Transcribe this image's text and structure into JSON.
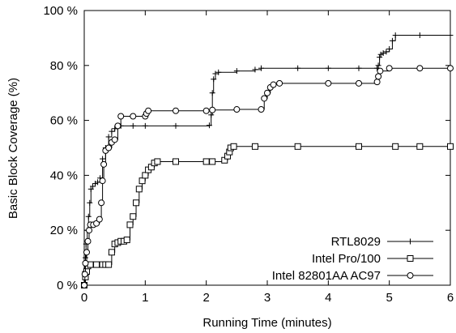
{
  "chart_data": {
    "type": "line",
    "xlabel": "Running Time (minutes)",
    "ylabel": "Basic Block Coverage (%)",
    "xlim": [
      0,
      6
    ],
    "ylim": [
      0,
      100
    ],
    "x_ticks": [
      "0",
      "1",
      "2",
      "3",
      "4",
      "5",
      "6"
    ],
    "x_tick_values": [
      0,
      1,
      2,
      3,
      4,
      5,
      6
    ],
    "y_ticks": [
      "0 %",
      "20 %",
      "40 %",
      "60 %",
      "80 %",
      "100 %"
    ],
    "y_tick_values": [
      0,
      20,
      40,
      60,
      80,
      100
    ],
    "grid": false,
    "legend_position": "bottom-right",
    "series": [
      {
        "name": "RTL8029",
        "marker": "plus",
        "x": [
          0,
          0.01,
          0.02,
          0.03,
          0.05,
          0.07,
          0.09,
          0.11,
          0.14,
          0.18,
          0.22,
          0.26,
          0.3,
          0.35,
          0.4,
          0.45,
          0.5,
          0.55,
          0.6,
          0.8,
          1.0,
          1.5,
          2.05,
          2.08,
          2.1,
          2.12,
          2.15,
          2.2,
          2.5,
          2.8,
          2.9,
          3.5,
          4.0,
          4.5,
          4.8,
          4.82,
          4.84,
          4.86,
          4.9,
          4.95,
          5.0,
          5.05,
          5.1,
          5.5,
          6.0
        ],
        "y": [
          0,
          5,
          10,
          15,
          20,
          25,
          30,
          35,
          36,
          37,
          37.5,
          39,
          46,
          50,
          54,
          56,
          57,
          57.5,
          58,
          58,
          58,
          58,
          58.2,
          62,
          70,
          75,
          77,
          77.5,
          78,
          78.5,
          79,
          79,
          79,
          79,
          79,
          80,
          83,
          84,
          84.5,
          85,
          86,
          89,
          91,
          91,
          91
        ]
      },
      {
        "name": "Intel Pro/100",
        "marker": "square",
        "x": [
          0,
          0.02,
          0.04,
          0.06,
          0.1,
          0.2,
          0.3,
          0.35,
          0.4,
          0.45,
          0.5,
          0.55,
          0.6,
          0.65,
          0.7,
          0.75,
          0.8,
          0.85,
          0.9,
          0.95,
          1.0,
          1.05,
          1.1,
          1.15,
          1.2,
          1.5,
          2.0,
          2.1,
          2.3,
          2.35,
          2.38,
          2.4,
          2.45,
          2.8,
          3.5,
          4.5,
          5.1,
          5.5,
          6.0
        ],
        "y": [
          0,
          3,
          5,
          7,
          7.5,
          7.5,
          7.5,
          7.5,
          7.5,
          12,
          15,
          15.5,
          16,
          16,
          16.5,
          22,
          25,
          30,
          35,
          38,
          40,
          42,
          43,
          44.5,
          45,
          45,
          45,
          45,
          45.5,
          47,
          48.5,
          50,
          50.5,
          50.5,
          50.5,
          50.5,
          50.5,
          50.5,
          50.5
        ]
      },
      {
        "name": "Intel 82801AA AC97",
        "marker": "circle",
        "x": [
          0,
          0.01,
          0.02,
          0.04,
          0.06,
          0.08,
          0.1,
          0.15,
          0.2,
          0.25,
          0.28,
          0.3,
          0.32,
          0.35,
          0.4,
          0.45,
          0.5,
          0.55,
          0.6,
          0.8,
          1.0,
          1.02,
          1.05,
          1.5,
          2.0,
          2.1,
          2.5,
          2.9,
          2.95,
          3.0,
          3.05,
          3.1,
          3.2,
          4.0,
          4.5,
          4.8,
          4.82,
          4.85,
          5.0,
          5.5,
          6.0
        ],
        "y": [
          0,
          4,
          8,
          12,
          16,
          20,
          22,
          22,
          22.5,
          24,
          30,
          38,
          44,
          49,
          50,
          52,
          53,
          58,
          61.5,
          61.5,
          61.5,
          62.5,
          63.5,
          63.5,
          63.5,
          63.8,
          64,
          64,
          68,
          70,
          72,
          73,
          73.5,
          73.5,
          73.5,
          74,
          76,
          78,
          79,
          79,
          79
        ]
      }
    ]
  }
}
